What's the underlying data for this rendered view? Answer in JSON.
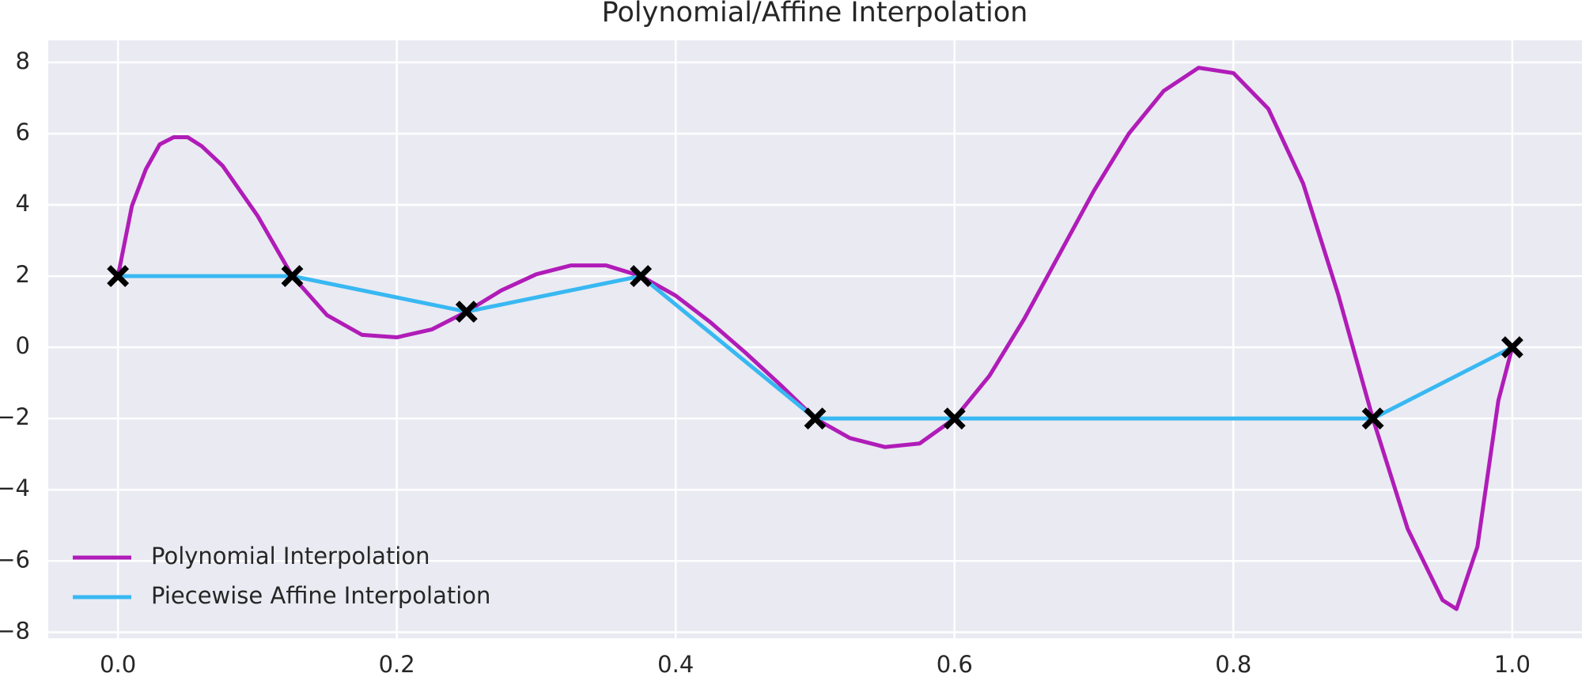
{
  "chart_data": {
    "type": "line",
    "title": "Polynomial/Affine Interpolation",
    "xlim": [
      -0.05,
      1.05
    ],
    "ylim": [
      -8.17,
      8.62
    ],
    "xticks": [
      {
        "value": 0,
        "label": "0.0"
      },
      {
        "value": 0.2,
        "label": "0.2"
      },
      {
        "value": 0.4,
        "label": "0.4"
      },
      {
        "value": 0.6,
        "label": "0.6"
      },
      {
        "value": 0.8,
        "label": "0.8"
      },
      {
        "value": 1,
        "label": "1.0"
      }
    ],
    "yticks": [
      {
        "value": -8,
        "label": "−8"
      },
      {
        "value": -6,
        "label": "−6"
      },
      {
        "value": -4,
        "label": "−4"
      },
      {
        "value": -2,
        "label": "−2"
      },
      0,
      2,
      4,
      6,
      8
    ],
    "grid": true,
    "legend": "lower left",
    "series": [
      {
        "name": "Polynomial Interpolation",
        "color": "#b01cb8",
        "x": [
          0,
          0.01,
          0.02,
          0.03,
          0.04,
          0.05,
          0.06,
          0.075,
          0.1,
          0.125,
          0.15,
          0.175,
          0.2,
          0.225,
          0.25,
          0.275,
          0.3,
          0.325,
          0.35,
          0.375,
          0.4,
          0.425,
          0.45,
          0.475,
          0.5,
          0.525,
          0.55,
          0.575,
          0.6,
          0.625,
          0.65,
          0.675,
          0.7,
          0.725,
          0.75,
          0.775,
          0.8,
          0.825,
          0.85,
          0.875,
          0.9,
          0.925,
          0.95,
          0.96,
          0.975,
          0.99,
          1
        ],
        "values": [
          2,
          3.97,
          5.0,
          5.7,
          5.9,
          5.9,
          5.65,
          5.1,
          3.7,
          2,
          0.9,
          0.35,
          0.28,
          0.5,
          1.0,
          1.6,
          2.05,
          2.3,
          2.3,
          2.0,
          1.45,
          0.7,
          -0.15,
          -1.05,
          -2,
          -2.55,
          -2.8,
          -2.7,
          -2,
          -0.8,
          0.8,
          2.6,
          4.4,
          6.0,
          7.2,
          7.85,
          7.7,
          6.7,
          4.6,
          1.5,
          -2,
          -5.1,
          -7.1,
          -7.35,
          -5.6,
          -1.5,
          0
        ]
      },
      {
        "name": "Piecewise Affine Interpolation",
        "color": "#38b8f2",
        "marker": "X",
        "marker_color": "#000000",
        "x": [
          0,
          0.125,
          0.25,
          0.375,
          0.5,
          0.6,
          0.9,
          1
        ],
        "values": [
          2,
          2,
          1,
          2,
          -2,
          -2,
          -2,
          0
        ]
      }
    ]
  }
}
